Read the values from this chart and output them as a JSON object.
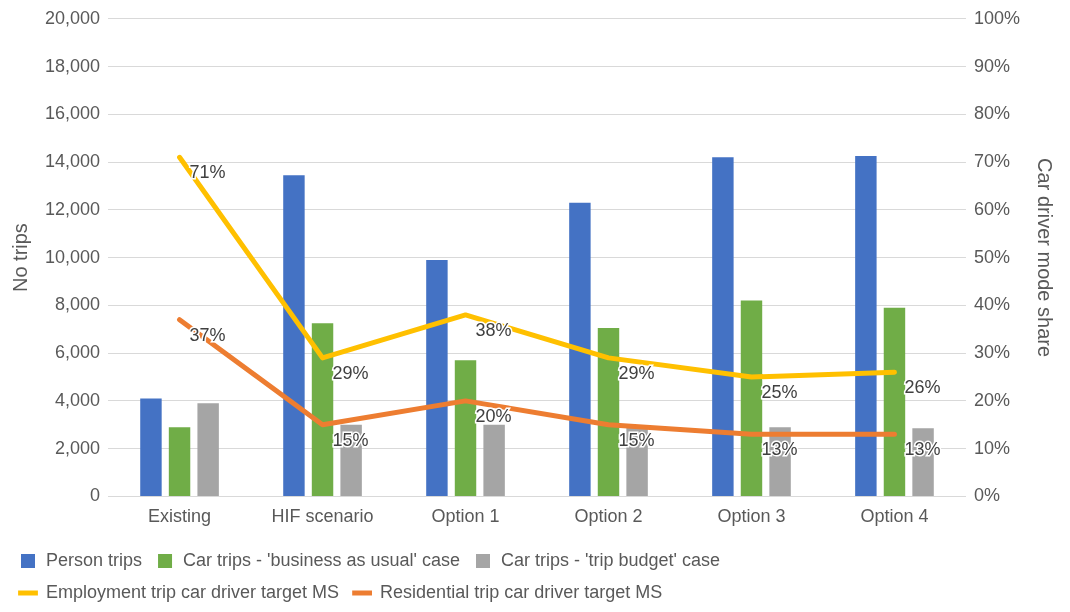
{
  "chart_data": {
    "type": "bar",
    "categories": [
      "Existing",
      "HIF scenario",
      "Option 1",
      "Option 2",
      "Option 3",
      "Option 4"
    ],
    "ylabel": "No trips",
    "y2label": "Car driver mode share",
    "ylim": [
      0,
      20000
    ],
    "yticks": [
      {
        "value": 0,
        "label": "0"
      },
      {
        "value": 2000,
        "label": "2,000"
      },
      {
        "value": 4000,
        "label": "4,000"
      },
      {
        "value": 6000,
        "label": "6,000"
      },
      {
        "value": 8000,
        "label": "8,000"
      },
      {
        "value": 10000,
        "label": "10,000"
      },
      {
        "value": 12000,
        "label": "12,000"
      },
      {
        "value": 14000,
        "label": "14,000"
      },
      {
        "value": 16000,
        "label": "16,000"
      },
      {
        "value": 18000,
        "label": "18,000"
      },
      {
        "value": 20000,
        "label": "20,000"
      }
    ],
    "y2lim": [
      0,
      100
    ],
    "y2ticks": [
      {
        "value": 0,
        "label": "0%"
      },
      {
        "value": 10,
        "label": "10%"
      },
      {
        "value": 20,
        "label": "20%"
      },
      {
        "value": 30,
        "label": "30%"
      },
      {
        "value": 40,
        "label": "40%"
      },
      {
        "value": 50,
        "label": "50%"
      },
      {
        "value": 60,
        "label": "60%"
      },
      {
        "value": 70,
        "label": "70%"
      },
      {
        "value": 80,
        "label": "80%"
      },
      {
        "value": 90,
        "label": "90%"
      },
      {
        "value": 100,
        "label": "100%"
      }
    ],
    "grid": "y",
    "legend": "bottom",
    "series": [
      {
        "name": "Person trips",
        "color": "#4472c4",
        "values": [
          4100,
          13450,
          9900,
          12300,
          14200,
          14250
        ]
      },
      {
        "name": "Car trips - 'business as usual' case",
        "color": "#70ad47",
        "values": [
          2900,
          7250,
          5700,
          7050,
          8200,
          7900
        ]
      },
      {
        "name": "Car trips - 'trip budget' case",
        "color": "#a5a5a5",
        "values": [
          3900,
          3000,
          3000,
          2900,
          2900,
          2850
        ]
      },
      {
        "name": "Employment trip car driver target MS",
        "type": "line",
        "axis": "y2",
        "color": "#ffc000",
        "marker": "none",
        "values": [
          71,
          29,
          38,
          29,
          25,
          26
        ],
        "value_labels": [
          "71%",
          "29%",
          "38%",
          "29%",
          "25%",
          "26%"
        ]
      },
      {
        "name": "Residential trip car driver target MS",
        "type": "line",
        "axis": "y2",
        "color": "#ed7d31",
        "marker": "none",
        "values": [
          37,
          15,
          20,
          15,
          13,
          13
        ],
        "value_labels": [
          "37%",
          "15%",
          "20%",
          "15%",
          "13%",
          "13%"
        ]
      }
    ]
  }
}
